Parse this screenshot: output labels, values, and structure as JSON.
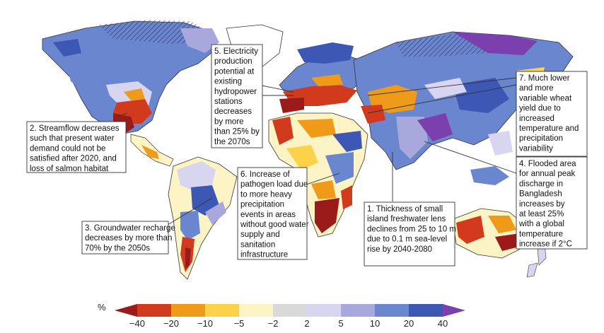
{
  "colors": {
    "ocean": "#ffffff",
    "land_outline": "#333333",
    "hatch": "#2a2a5a"
  },
  "callouts": [
    {
      "id": "c5",
      "lines": [
        "5. Electricity",
        "production",
        "potential at",
        "existing",
        "hydropower",
        "stations",
        "decreases",
        "by more",
        "than 25% by",
        "the 2070s"
      ]
    },
    {
      "id": "c7",
      "lines": [
        "7. Much lower",
        "and more",
        "variable wheat",
        "yield due to",
        "increased",
        "temperature and",
        "precipitation",
        "variability"
      ]
    },
    {
      "id": "c2",
      "lines": [
        "2. Streamflow decreases",
        "such that present water",
        "demand could not be",
        "satisfied after 2020, and",
        "loss of salmon habitat"
      ]
    },
    {
      "id": "c4",
      "lines": [
        "4. Flooded area",
        "for annual peak",
        "discharge in",
        "Bangladesh",
        "increases by",
        "at least 25%",
        "with a global",
        "temperature",
        "increase if 2°C"
      ]
    },
    {
      "id": "c6",
      "lines": [
        "6. Increase of",
        "pathogen load due",
        "to more heavy",
        "precipitation",
        "events in areas",
        "without good water",
        "supply and",
        "sanitation",
        "infrastructure"
      ]
    },
    {
      "id": "c1",
      "lines": [
        "1. Thickness of small",
        "island freshwater lens",
        "declines from 25 to 10 m",
        "due to 0.1 m sea-level",
        "rise by 2040-2080"
      ]
    },
    {
      "id": "c3",
      "lines": [
        "3. Groundwater recharge",
        "decreases by more than",
        "70% by the 2050s"
      ]
    }
  ],
  "legend": {
    "unit": "%",
    "ticks": [
      "−40",
      "−20",
      "−10",
      "−5",
      "−2",
      "2",
      "5",
      "10",
      "20",
      "40"
    ],
    "bins": [
      {
        "color": "#9b1b1b"
      },
      {
        "color": "#d23a1e"
      },
      {
        "color": "#f09a1a"
      },
      {
        "color": "#fcd24a"
      },
      {
        "color": "#fdf4c6"
      },
      {
        "color": "#d9d9d9"
      },
      {
        "color": "#d7d5ef"
      },
      {
        "color": "#a9a8dc"
      },
      {
        "color": "#6a86cf"
      },
      {
        "color": "#3c58b4"
      },
      {
        "color": "#7c3fae"
      }
    ]
  }
}
